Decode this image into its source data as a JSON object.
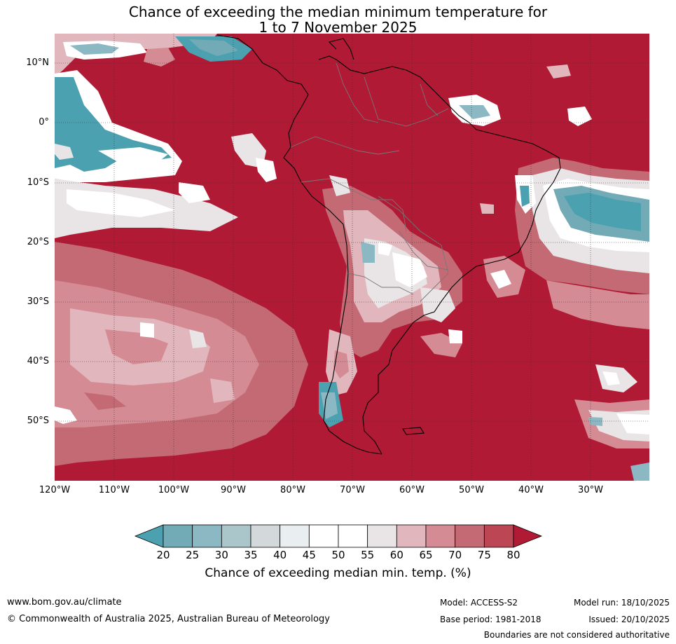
{
  "title": {
    "line1": "Chance of exceeding the median minimum temperature for",
    "line2": "1 to 7 November 2025"
  },
  "map": {
    "region": "South America",
    "lat_labels": [
      "10°N",
      "0°",
      "10°S",
      "20°S",
      "30°S",
      "40°S",
      "50°S"
    ],
    "lon_labels": [
      "120°W",
      "110°W",
      "100°W",
      "90°W",
      "80°W",
      "70°W",
      "60°W",
      "50°W",
      "40°W",
      "30°W"
    ],
    "dominant_color": "#b01a35"
  },
  "colorbar": {
    "ticks": [
      "20",
      "25",
      "30",
      "35",
      "40",
      "45",
      "50",
      "55",
      "60",
      "65",
      "70",
      "75",
      "80"
    ],
    "colors": [
      "#4ba1b0",
      "#72aab6",
      "#8cb8c4",
      "#aac6cb",
      "#d3d8da",
      "#e9eef0",
      "#ffffff",
      "#ffffff",
      "#e9e5e6",
      "#e1b6bc",
      "#d48b94",
      "#c46a75",
      "#bd4655",
      "#b01a35"
    ],
    "label": "Chance of exceeding median min. temp. (%)"
  },
  "footer": {
    "url": "www.bom.gov.au/climate",
    "copyright": "© Commonwealth of Australia 2025, Australian Bureau of Meteorology",
    "model": "Model: ACCESS-S2",
    "base_period": "Base period: 1981-2018",
    "model_run": "Model run: 18/10/2025",
    "issued": "Issued: 20/10/2025",
    "disclaimer": "Boundaries are not considered authoritative"
  }
}
